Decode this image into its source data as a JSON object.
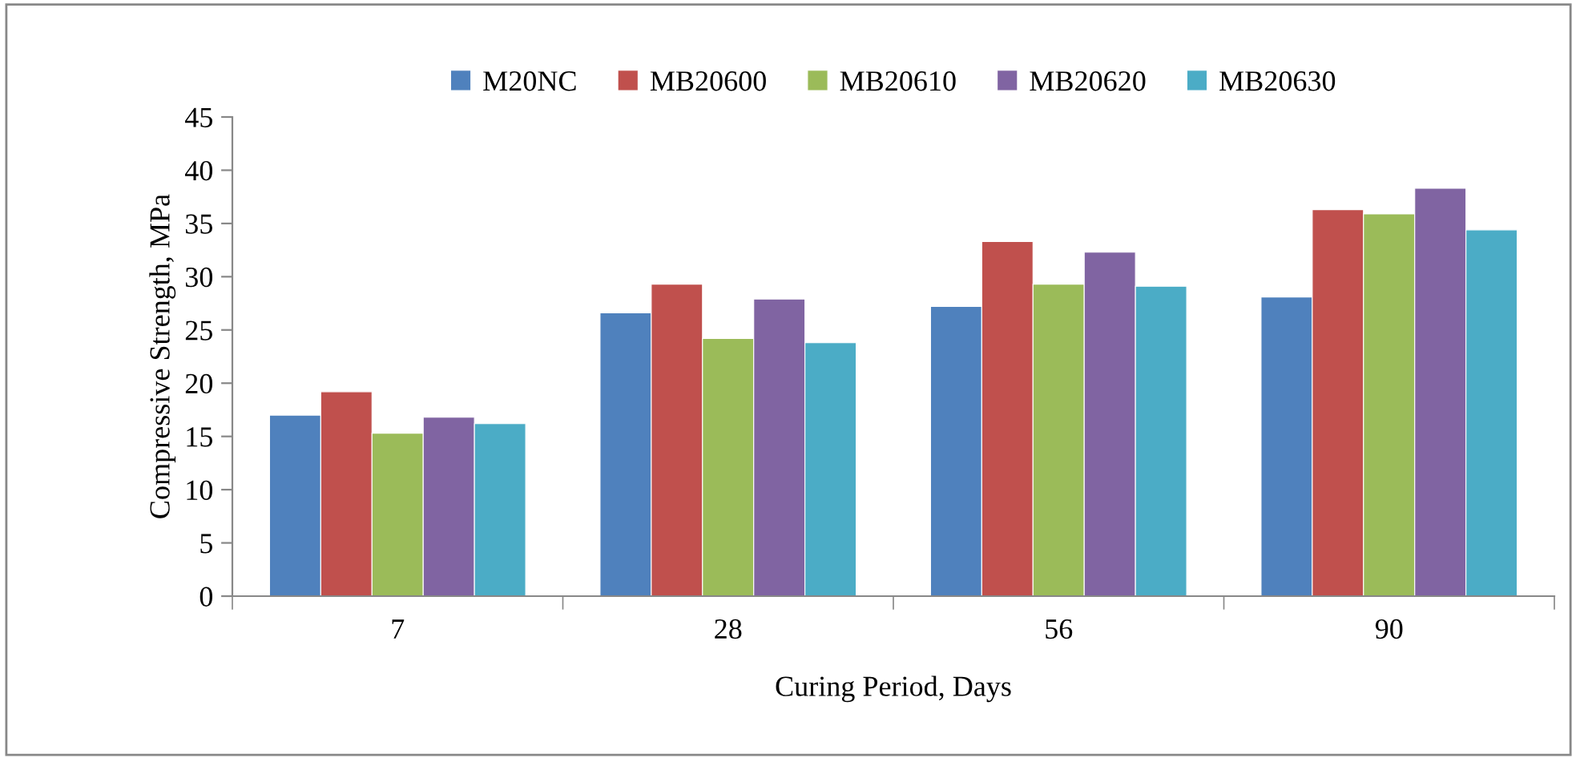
{
  "chart_data": {
    "type": "bar",
    "xlabel": "Curing Period, Days",
    "ylabel": "Compressive Strength, MPa",
    "categories": [
      "7",
      "28",
      "56",
      "90"
    ],
    "series": [
      {
        "name": "M20NC",
        "color": "#4f81bd",
        "values": [
          17.0,
          26.6,
          27.2,
          28.1
        ]
      },
      {
        "name": "MB20600",
        "color": "#c0504d",
        "values": [
          19.2,
          29.3,
          33.3,
          36.3
        ]
      },
      {
        "name": "MB20610",
        "color": "#9bbb59",
        "values": [
          15.3,
          24.2,
          29.3,
          35.9
        ]
      },
      {
        "name": "MB20620",
        "color": "#8064a2",
        "values": [
          16.8,
          27.9,
          32.3,
          38.3
        ]
      },
      {
        "name": "MB20630",
        "color": "#4bacc6",
        "values": [
          16.2,
          23.8,
          29.1,
          34.4
        ]
      }
    ],
    "ylim": [
      0,
      45
    ],
    "yticks": [
      0,
      5,
      10,
      15,
      20,
      25,
      30,
      35,
      40,
      45
    ],
    "grid": false,
    "legend": "top"
  }
}
